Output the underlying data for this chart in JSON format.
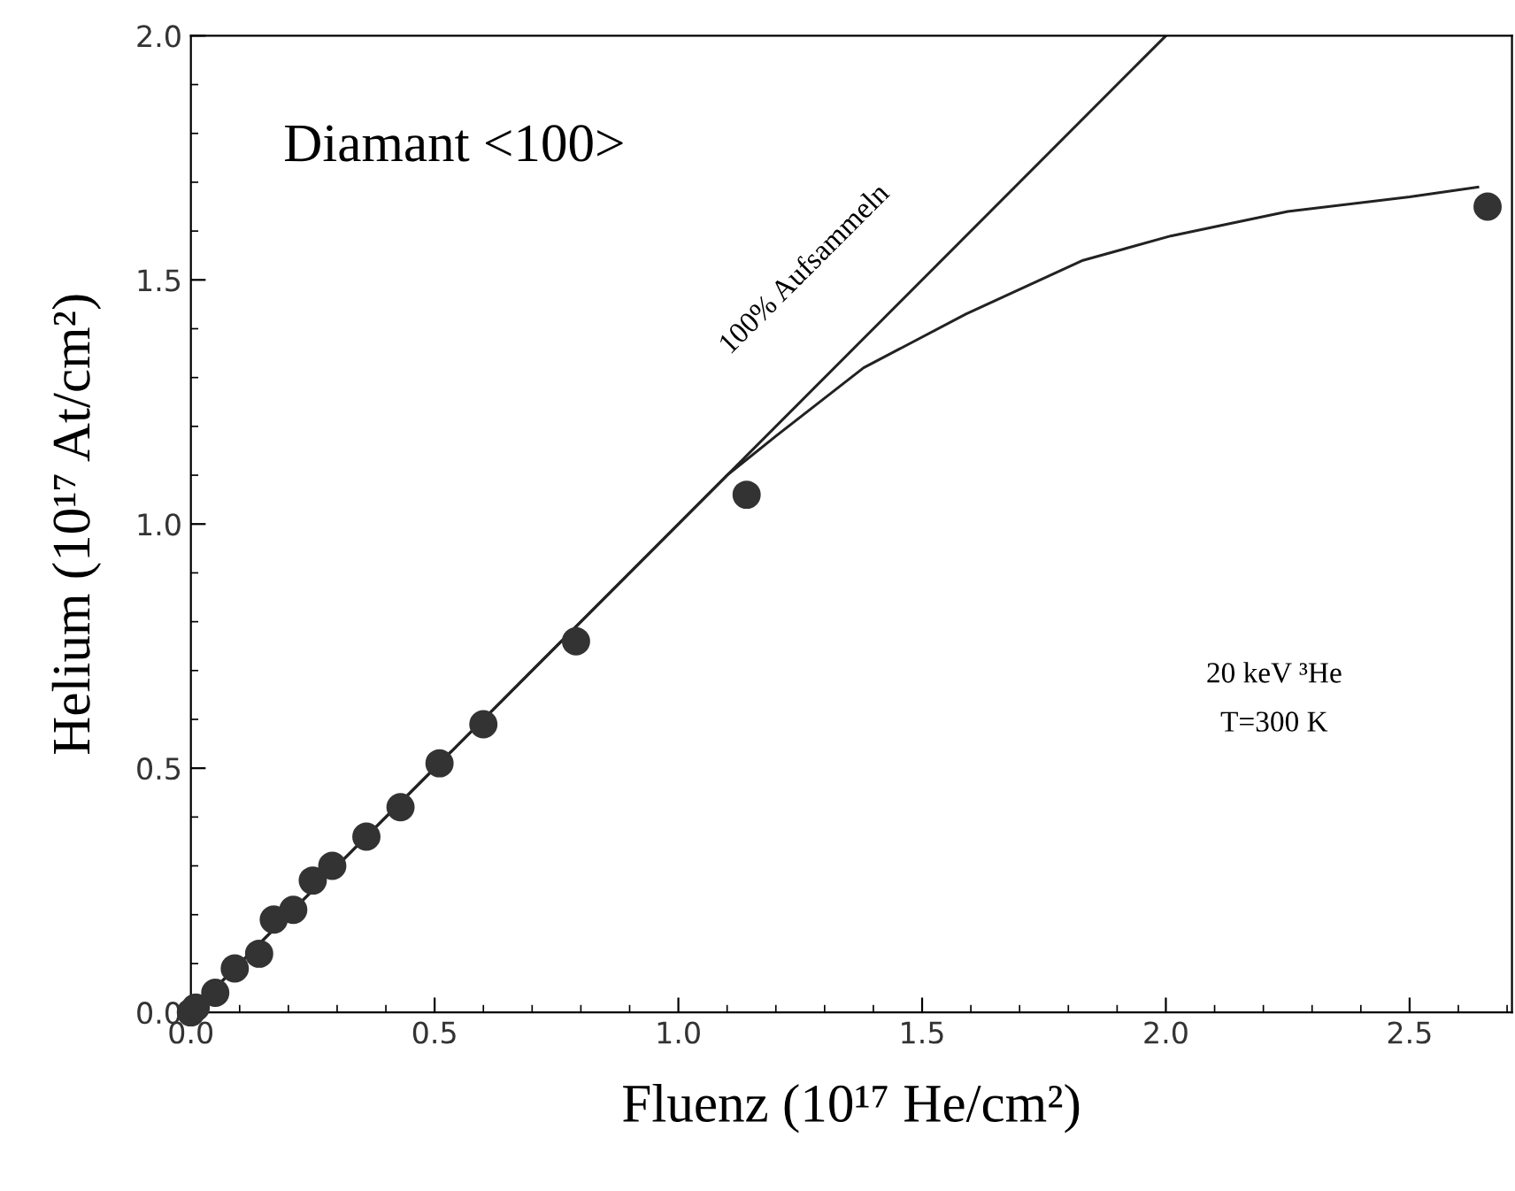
{
  "chart_data": {
    "type": "scatter",
    "title": "Diamant <100>",
    "xlabel": "Fluenz (10¹⁷ He/cm²)",
    "ylabel": "Helium (10¹⁷ At/cm²)",
    "xlim": [
      0,
      2.71
    ],
    "ylim": [
      0,
      2.0
    ],
    "xticks": [
      {
        "value": 0,
        "label": "0.0"
      },
      0.5,
      {
        "value": 1,
        "label": "1.0"
      },
      1.5,
      {
        "value": 2,
        "label": "2.0"
      },
      2.5
    ],
    "yticks": [
      {
        "value": 0,
        "label": "0.0"
      },
      0.5,
      {
        "value": 1,
        "label": "1.0"
      },
      1.5,
      {
        "value": 2,
        "label": "2.0"
      }
    ],
    "grid": false,
    "legend": false,
    "marker": "circle",
    "series": [
      {
        "color": "#333333",
        "x": [
          0,
          0.01,
          0.05,
          0.09,
          0.14,
          0.17,
          0.21,
          0.25,
          0.29,
          0.36,
          0.43,
          0.51,
          0.6,
          0.79,
          1.14,
          2.66
        ],
        "values": [
          0,
          0.01,
          0.04,
          0.09,
          0.12,
          0.19,
          0.21,
          0.27,
          0.3,
          0.36,
          0.42,
          0.51,
          0.59,
          0.76,
          1.06,
          1.65
        ]
      },
      {
        "type": "line",
        "color": "#222222",
        "line_style": "solid",
        "marker": "none",
        "x": [
          0,
          2.0
        ],
        "values": [
          0,
          2.0
        ]
      },
      {
        "type": "line",
        "color": "#222222",
        "line_style": "solid",
        "marker": "none",
        "x": [
          0,
          1.1,
          1.2,
          1.38,
          1.59,
          1.83,
          2.01,
          2.25,
          2.5,
          2.64
        ],
        "values": [
          0,
          1.1,
          1.18,
          1.32,
          1.43,
          1.54,
          1.59,
          1.64,
          1.67,
          1.69
        ]
      }
    ],
    "annotations": [
      "100% Aufsammeln",
      "20 keV ³He",
      "T=300 K"
    ]
  }
}
